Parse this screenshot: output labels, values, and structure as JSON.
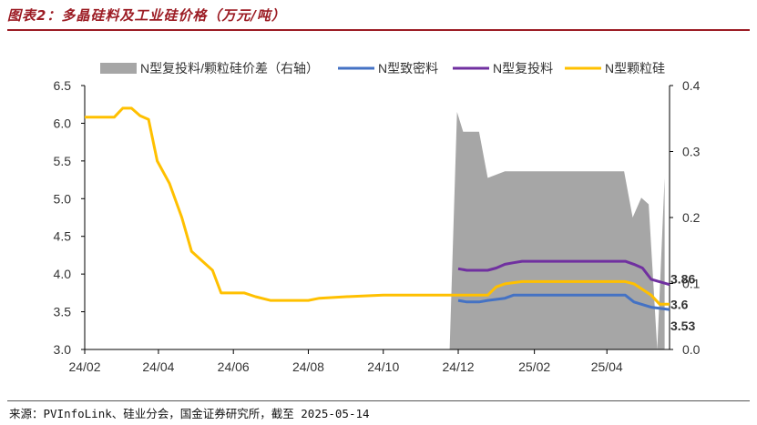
{
  "title": "图表2：多晶硅料及工业硅价格（万元/吨）",
  "source": "来源：PVInfoLink、硅业分会，国金证券研究所，截至 2025-05-14",
  "colors": {
    "title": "#9c1c24",
    "spread_area": "#a6a6a6",
    "n_dense": "#4472c4",
    "n_recycled": "#7030a0",
    "n_granular": "#ffc000"
  },
  "chart_data": {
    "type": "line",
    "x_ticks": [
      "24/02",
      "24/04",
      "24/06",
      "24/08",
      "24/10",
      "24/12",
      "25/02",
      "25/04"
    ],
    "x_domain": [
      "2024-02-01",
      "2025-05-22"
    ],
    "left_axis": {
      "ticks": [
        "6.5",
        "6.0",
        "5.5",
        "5.0",
        "4.5",
        "4.0",
        "3.5",
        "3.0"
      ],
      "range": [
        3.0,
        6.5
      ]
    },
    "right_axis": {
      "ticks": [
        "0.4",
        "0.3",
        "0.2",
        "0.1",
        "0.0"
      ],
      "range": [
        0.0,
        0.4
      ]
    },
    "grid": false,
    "legend_position": "top",
    "series": [
      {
        "name": "N型复投料/颗粒硅价差（右轴）",
        "kind": "area",
        "axis": "right",
        "points": [
          [
            "2024-11-24",
            0.0
          ],
          [
            "2024-11-30",
            0.36
          ],
          [
            "2024-12-05",
            0.33
          ],
          [
            "2024-12-12",
            0.33
          ],
          [
            "2024-12-18",
            0.33
          ],
          [
            "2024-12-25",
            0.26
          ],
          [
            "2025-01-01",
            0.265
          ],
          [
            "2025-01-08",
            0.27
          ],
          [
            "2025-01-15",
            0.27
          ],
          [
            "2025-03-15",
            0.27
          ],
          [
            "2025-04-15",
            0.27
          ],
          [
            "2025-04-22",
            0.2
          ],
          [
            "2025-04-29",
            0.23
          ],
          [
            "2025-05-05",
            0.22
          ],
          [
            "2025-05-12",
            0.0
          ],
          [
            "2025-05-18",
            0.26
          ],
          [
            "2025-05-18",
            0.0
          ]
        ]
      },
      {
        "name": "N型致密料",
        "axis": "left",
        "points": [
          [
            "2024-12-01",
            3.65
          ],
          [
            "2024-12-08",
            3.63
          ],
          [
            "2024-12-18",
            3.63
          ],
          [
            "2024-12-25",
            3.65
          ],
          [
            "2025-01-08",
            3.68
          ],
          [
            "2025-01-15",
            3.72
          ],
          [
            "2025-04-02",
            3.72
          ],
          [
            "2025-04-16",
            3.72
          ],
          [
            "2025-04-23",
            3.63
          ],
          [
            "2025-05-07",
            3.56
          ],
          [
            "2025-05-22",
            3.53
          ]
        ]
      },
      {
        "name": "N型复投料",
        "axis": "left",
        "points": [
          [
            "2024-12-01",
            4.07
          ],
          [
            "2024-12-08",
            4.05
          ],
          [
            "2024-12-25",
            4.05
          ],
          [
            "2025-01-01",
            4.08
          ],
          [
            "2025-01-08",
            4.13
          ],
          [
            "2025-01-15",
            4.15
          ],
          [
            "2025-01-22",
            4.17
          ],
          [
            "2025-04-16",
            4.17
          ],
          [
            "2025-04-23",
            4.13
          ],
          [
            "2025-04-30",
            4.08
          ],
          [
            "2025-05-07",
            3.93
          ],
          [
            "2025-05-22",
            3.86
          ]
        ]
      },
      {
        "name": "N型颗粒硅",
        "axis": "left",
        "points": [
          [
            "2024-02-01",
            6.08
          ],
          [
            "2024-02-25",
            6.08
          ],
          [
            "2024-03-03",
            6.2
          ],
          [
            "2024-03-10",
            6.2
          ],
          [
            "2024-03-17",
            6.1
          ],
          [
            "2024-03-24",
            6.05
          ],
          [
            "2024-03-31",
            5.5
          ],
          [
            "2024-04-10",
            5.2
          ],
          [
            "2024-04-20",
            4.75
          ],
          [
            "2024-04-28",
            4.3
          ],
          [
            "2024-05-15",
            4.05
          ],
          [
            "2024-05-22",
            3.75
          ],
          [
            "2024-06-10",
            3.75
          ],
          [
            "2024-06-19",
            3.7
          ],
          [
            "2024-07-01",
            3.65
          ],
          [
            "2024-08-01",
            3.65
          ],
          [
            "2024-08-10",
            3.68
          ],
          [
            "2024-09-01",
            3.7
          ],
          [
            "2024-10-01",
            3.72
          ],
          [
            "2024-11-08",
            3.72
          ],
          [
            "2024-11-30",
            3.72
          ],
          [
            "2024-12-25",
            3.72
          ],
          [
            "2025-01-01",
            3.83
          ],
          [
            "2025-01-08",
            3.87
          ],
          [
            "2025-01-22",
            3.9
          ],
          [
            "2025-04-16",
            3.9
          ],
          [
            "2025-04-23",
            3.87
          ],
          [
            "2025-05-07",
            3.72
          ],
          [
            "2025-05-14",
            3.6
          ],
          [
            "2025-05-22",
            3.6
          ]
        ]
      }
    ],
    "end_labels": [
      "3.86",
      "3.6",
      "3.53"
    ]
  }
}
